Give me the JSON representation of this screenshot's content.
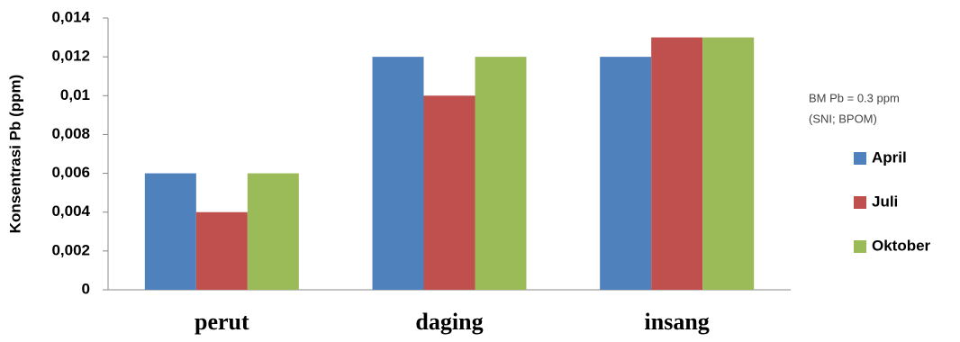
{
  "chart_data": {
    "type": "bar",
    "ylabel": "Konsentrasi Pb (ppm)",
    "categories": [
      "perut",
      "daging",
      "insang"
    ],
    "series": [
      {
        "name": "April",
        "color": "#4f81bd",
        "values": [
          0.006,
          0.012,
          0.012
        ]
      },
      {
        "name": "Juli",
        "color": "#c0504d",
        "values": [
          0.004,
          0.01,
          0.013
        ]
      },
      {
        "name": "Oktober",
        "color": "#9bbb59",
        "values": [
          0.006,
          0.012,
          0.013
        ]
      }
    ],
    "ylim": [
      0,
      0.014
    ],
    "yticks": [
      0,
      {
        "value": 0.002,
        "label": "0,002"
      },
      {
        "value": 0.004,
        "label": "0,004"
      },
      {
        "value": 0.006,
        "label": "0,006"
      },
      {
        "value": 0.008,
        "label": "0,008"
      },
      {
        "value": 0.01,
        "label": "0,01"
      },
      {
        "value": 0.012,
        "label": "0,012"
      },
      {
        "value": 0.014,
        "label": "0,014"
      }
    ],
    "annotation": [
      "BM Pb = 0.3 ppm",
      "(SNI; BPOM)"
    ],
    "legend": "right"
  }
}
